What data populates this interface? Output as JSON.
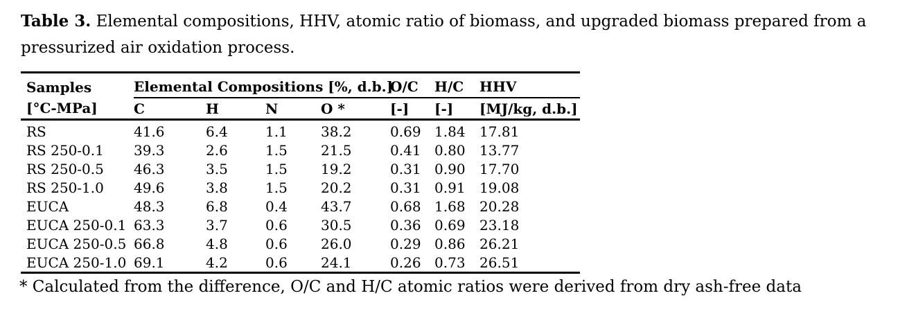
{
  "caption": {
    "label": "Table 3.",
    "text": "Elemental compositions, HHV, atomic ratio of biomass, and upgraded biomass prepared from a pressurized air oxidation process."
  },
  "table": {
    "col1_header_line1": "Samples",
    "col1_header_line2": "[°C-MPa]",
    "group_header": "Elemental Compositions [%, d.b.]",
    "top_headers": {
      "oc": "O/C",
      "hc": "H/C",
      "hhv": "HHV"
    },
    "sub_headers": [
      "C",
      "H",
      "N",
      "O *",
      "[-]",
      "[-]",
      "[MJ/kg, d.b.]"
    ],
    "rows": [
      [
        "RS",
        "41.6",
        "6.4",
        "1.1",
        "38.2",
        "0.69",
        "1.84",
        "17.81"
      ],
      [
        "RS 250-0.1",
        "39.3",
        "2.6",
        "1.5",
        "21.5",
        "0.41",
        "0.80",
        "13.77"
      ],
      [
        "RS 250-0.5",
        "46.3",
        "3.5",
        "1.5",
        "19.2",
        "0.31",
        "0.90",
        "17.70"
      ],
      [
        "RS 250-1.0",
        "49.6",
        "3.8",
        "1.5",
        "20.2",
        "0.31",
        "0.91",
        "19.08"
      ],
      [
        "EUCA",
        "48.3",
        "6.8",
        "0.4",
        "43.7",
        "0.68",
        "1.68",
        "20.28"
      ],
      [
        "EUCA 250-0.1",
        "63.3",
        "3.7",
        "0.6",
        "30.5",
        "0.36",
        "0.69",
        "23.18"
      ],
      [
        "EUCA 250-0.5",
        "66.8",
        "4.8",
        "0.6",
        "26.0",
        "0.29",
        "0.86",
        "26.21"
      ],
      [
        "EUCA 250-1.0",
        "69.1",
        "4.2",
        "0.6",
        "24.1",
        "0.26",
        "0.73",
        "26.51"
      ]
    ]
  },
  "footnote": "* Calculated from the difference, O/C and H/C atomic ratios were derived from dry ash-free data"
}
